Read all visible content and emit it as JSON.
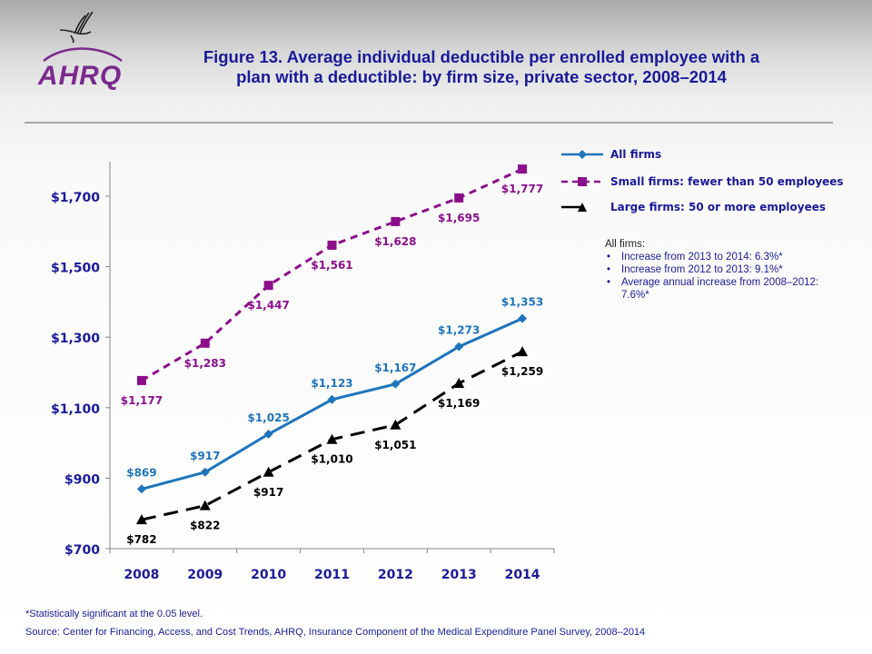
{
  "header": {
    "logo_text": "AHRQ",
    "title_line1": "Figure 13.  Average individual deductible per enrolled employee with a",
    "title_line2": "plan with a deductible: by firm size, private sector, 2008–2014"
  },
  "chart_data": {
    "type": "line",
    "title": "Figure 13. Average individual deductible per enrolled employee with a plan with a deductible: by firm size, private sector, 2008–2014",
    "xlabel": "",
    "ylabel": "",
    "categories": [
      "2008",
      "2009",
      "2010",
      "2011",
      "2012",
      "2013",
      "2014"
    ],
    "ylim": [
      700,
      1800
    ],
    "yticks": [
      700,
      900,
      1100,
      1300,
      1500,
      1700
    ],
    "ytick_labels": [
      "$700",
      "$900",
      "$1,100",
      "$1,300",
      "$1,500",
      "$1,700"
    ],
    "grid": false,
    "legend_position": "right",
    "series": [
      {
        "name": "All firms",
        "color": "#1f74bc",
        "line_style": "solid",
        "marker": "diamond",
        "label_position": "above",
        "values": [
          869,
          917,
          1025,
          1123,
          1167,
          1273,
          1353
        ],
        "labels": [
          "$869",
          "$917",
          "$1,025",
          "$1,123",
          "$1,167",
          "$1,273",
          "$1,353"
        ]
      },
      {
        "name": "Small firms: fewer than 50 employees",
        "color": "#8b0f8b",
        "line_style": "dashed",
        "marker": "square",
        "label_position": "below",
        "values": [
          1177,
          1283,
          1447,
          1561,
          1628,
          1695,
          1777
        ],
        "labels": [
          "$1,177",
          "$1,283",
          "$1,447",
          "$1,561",
          "$1,628",
          "$1,695",
          "$1,777"
        ]
      },
      {
        "name": "Large firms: 50 or more employees",
        "color": "#000000",
        "line_style": "long-dashed",
        "marker": "triangle",
        "label_position": "below",
        "values": [
          782,
          822,
          917,
          1010,
          1051,
          1169,
          1259
        ],
        "labels": [
          "$782",
          "$822",
          "$917",
          "$1,010",
          "$1,051",
          "$1,169",
          "$1,259"
        ]
      }
    ],
    "annotation": {
      "heading": "All firms:",
      "bullets": [
        "Increase from 2013 to 2014: 6.3%*",
        "Increase from 2012 to 2013: 9.1%*",
        "Average annual increase from 2008–2012: 7.6%*"
      ]
    }
  },
  "footer": {
    "footnote": "*Statistically significant at the 0.05 level.",
    "source": "Source: Center for Financing, Access, and Cost Trends, AHRQ, Insurance Component of the Medical Expenditure Panel Survey,  2008–2014"
  },
  "colors": {
    "title": "#1a1a99",
    "axis_labels": "#1a1a99"
  }
}
